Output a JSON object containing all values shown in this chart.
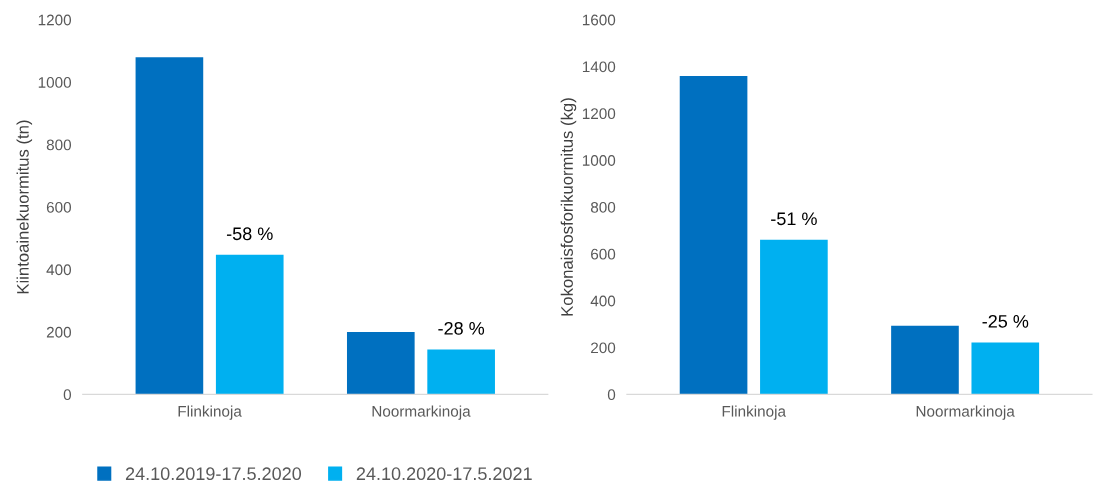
{
  "chart_data": [
    {
      "type": "bar",
      "ylabel": "Kiintoainekuormitus (tn)",
      "categories": [
        "Flinkinoja",
        "Noormarkinoja"
      ],
      "series": [
        {
          "name": "24.10.2019-17.5.2020",
          "color": "#0070c0",
          "values": [
            1080,
            200
          ]
        },
        {
          "name": "24.10.2020-17.5.2021",
          "color": "#00b0f0",
          "values": [
            447,
            144
          ]
        }
      ],
      "ylim": [
        0,
        1200
      ],
      "yticks": [
        0,
        200,
        400,
        600,
        800,
        1000,
        1200
      ],
      "grid": false,
      "legend": "bottom",
      "annotations": [
        "-58 %",
        "-28 %"
      ]
    },
    {
      "type": "bar",
      "ylabel": "Kokonaisfosforikuormitus (kg)",
      "categories": [
        "Flinkinoja",
        "Noormarkinoja"
      ],
      "series": [
        {
          "color": "#0070c0",
          "values": [
            1360,
            293
          ]
        },
        {
          "color": "#00b0f0",
          "values": [
            660,
            222
          ]
        }
      ],
      "ylim": [
        0,
        1600
      ],
      "yticks": [
        0,
        200,
        400,
        600,
        800,
        1000,
        1200,
        1400,
        1600
      ],
      "grid": false,
      "legend": false,
      "annotations": [
        "-51 %",
        "-25 %"
      ]
    }
  ]
}
